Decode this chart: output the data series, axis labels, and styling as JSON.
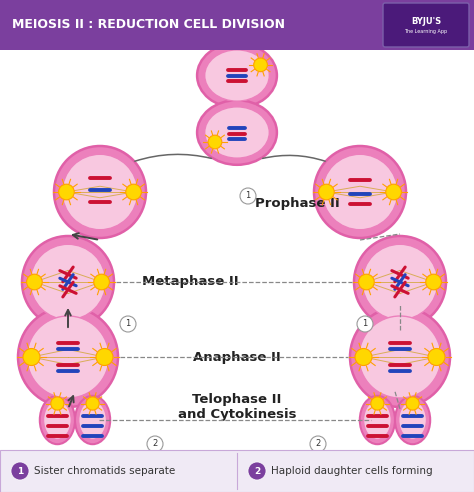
{
  "title": "MEIOSIS II : REDUCTION CELL DIVISION",
  "title_bg": "#7B3F9E",
  "title_color": "#FFFFFF",
  "bg_color": "#FFFFFF",
  "stages": {
    "prophase": "Prophase II",
    "metaphase": "Metaphase II",
    "anaphase": "Anaphase II",
    "telophase": "Telophase II\nand Cytokinesis"
  },
  "legend": [
    {
      "number": "1",
      "text": "Sister chromatids separate",
      "color": "#7B3F9E"
    },
    {
      "number": "2",
      "text": "Haploid daughter cells forming",
      "color": "#7B3F9E"
    }
  ],
  "legend_bg": "#F0EAF5",
  "legend_border": "#C8A8D8",
  "cell_outer": "#E060A8",
  "cell_mid": "#EC80BC",
  "cell_inner": "#F8C8E0",
  "chrom_red": "#CC1133",
  "chrom_blue": "#2244BB",
  "sun_gold": "#FFD700",
  "sun_orange": "#FFA000",
  "spindle_color": "#D4A840",
  "arrow_solid": "#444444",
  "arrow_dashed": "#888888",
  "num_circle_fill": "#FFFFFF",
  "num_circle_edge": "#888888",
  "title_fontsize": 9.0,
  "stage_fontsize": 9.5,
  "legend_fontsize": 7.5
}
